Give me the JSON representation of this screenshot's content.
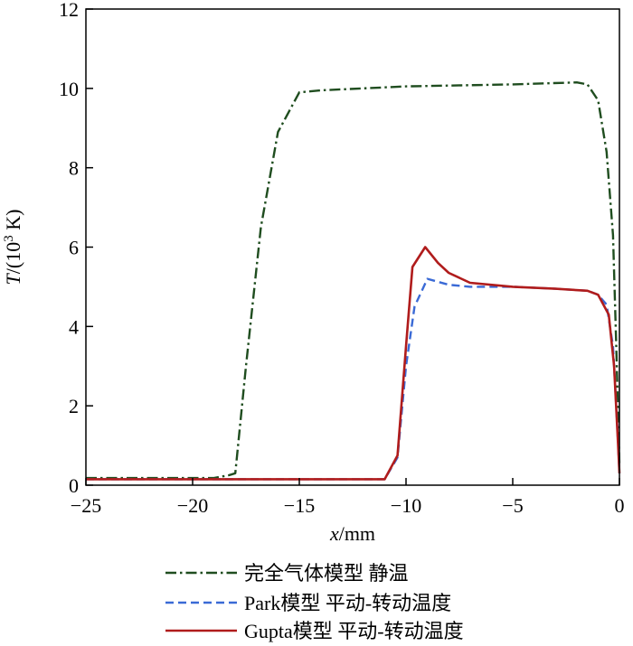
{
  "chart_data": {
    "type": "line",
    "xlabel_italic": "x",
    "xlabel_unit": "/mm",
    "ylabel_italic": "T",
    "ylabel_unit_prefix": "/(10",
    "ylabel_unit_sup": "3",
    "ylabel_unit_suffix": " K)",
    "xlim": [
      -25,
      0
    ],
    "ylim": [
      0,
      12
    ],
    "xticks": [
      -25,
      -20,
      -15,
      -10,
      -5,
      0
    ],
    "xtick_labels": [
      "−25",
      "−20",
      "−15",
      "−10",
      "−5",
      "0"
    ],
    "yticks": [
      0,
      2,
      4,
      6,
      8,
      10,
      12
    ],
    "ytick_labels": [
      "0",
      "2",
      "4",
      "6",
      "8",
      "10",
      "12"
    ],
    "grid": false,
    "legend_position": "bottom",
    "series": [
      {
        "name": "完全气体模型 静温",
        "color": "#1f4d1f",
        "dash": "dashdot",
        "points": [
          [
            -25,
            0.18
          ],
          [
            -19,
            0.18
          ],
          [
            -18.3,
            0.25
          ],
          [
            -18.0,
            0.3
          ],
          [
            -17.5,
            3.0
          ],
          [
            -16.8,
            6.5
          ],
          [
            -16.0,
            8.9
          ],
          [
            -15.5,
            9.4
          ],
          [
            -15.0,
            9.9
          ],
          [
            -14.0,
            9.95
          ],
          [
            -10.0,
            10.05
          ],
          [
            -5.0,
            10.1
          ],
          [
            -2.0,
            10.15
          ],
          [
            -1.5,
            10.1
          ],
          [
            -1.0,
            9.7
          ],
          [
            -0.6,
            8.4
          ],
          [
            -0.3,
            6.3
          ],
          [
            -0.15,
            3.5
          ],
          [
            -0.05,
            1.5
          ],
          [
            0,
            0.5
          ]
        ]
      },
      {
        "name": "Park模型 平动-转动温度",
        "color": "#3a6ad6",
        "dash": "dashed",
        "points": [
          [
            -25,
            0.15
          ],
          [
            -11.0,
            0.15
          ],
          [
            -10.4,
            0.7
          ],
          [
            -10.0,
            3.0
          ],
          [
            -9.6,
            4.5
          ],
          [
            -9.0,
            5.2
          ],
          [
            -8.0,
            5.05
          ],
          [
            -7.0,
            5.0
          ],
          [
            -5.0,
            5.0
          ],
          [
            -3.0,
            4.95
          ],
          [
            -1.5,
            4.9
          ],
          [
            -1.0,
            4.8
          ],
          [
            -0.6,
            4.55
          ],
          [
            -0.3,
            3.5
          ],
          [
            -0.1,
            1.5
          ],
          [
            0,
            0.3
          ]
        ]
      },
      {
        "name": "Gupta模型 平动-转动温度",
        "color": "#b01c1c",
        "dash": "solid",
        "points": [
          [
            -25,
            0.15
          ],
          [
            -11.0,
            0.15
          ],
          [
            -10.4,
            0.75
          ],
          [
            -10.0,
            3.5
          ],
          [
            -9.7,
            5.5
          ],
          [
            -9.1,
            6.0
          ],
          [
            -8.5,
            5.6
          ],
          [
            -8.0,
            5.35
          ],
          [
            -7.0,
            5.1
          ],
          [
            -5.0,
            5.0
          ],
          [
            -3.0,
            4.95
          ],
          [
            -1.5,
            4.9
          ],
          [
            -1.0,
            4.8
          ],
          [
            -0.5,
            4.3
          ],
          [
            -0.25,
            3.0
          ],
          [
            -0.08,
            1.2
          ],
          [
            0,
            0.3
          ]
        ]
      }
    ]
  }
}
